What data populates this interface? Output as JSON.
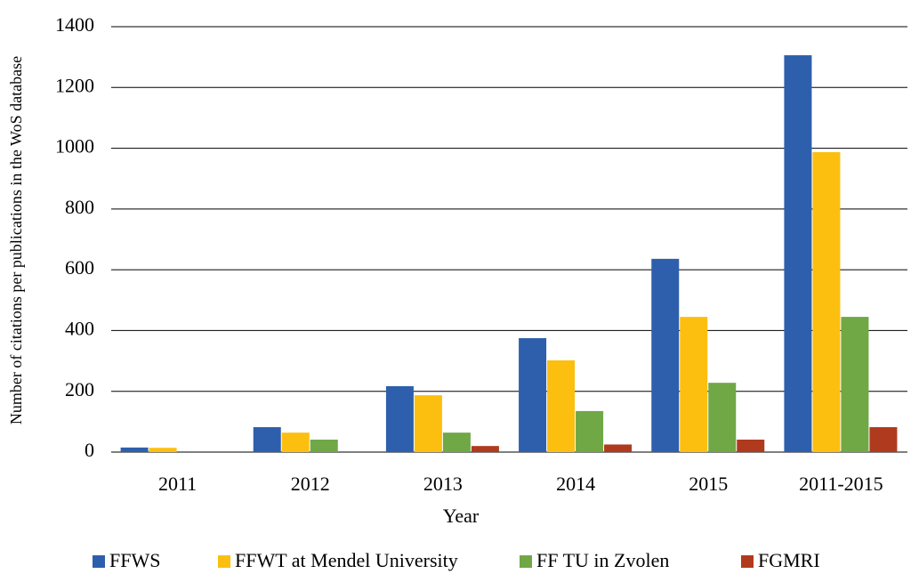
{
  "chart_data": {
    "type": "bar",
    "x_label": "Year",
    "y_label": "Number of citations per publications in the WoS database",
    "categories": [
      "2011",
      "2012",
      "2013",
      "2014",
      "2015",
      "2011-2015"
    ],
    "series": [
      {
        "name": "FFWS",
        "color": "#2e5fac",
        "values": [
          15,
          82,
          217,
          375,
          636,
          1306
        ]
      },
      {
        "name": "FFWT at Mendel University",
        "color": "#fdbf0f",
        "values": [
          14,
          64,
          187,
          302,
          445,
          987
        ]
      },
      {
        "name": "FF TU in Zvolen",
        "color": "#6fa845",
        "values": [
          0,
          41,
          64,
          135,
          228,
          445
        ]
      },
      {
        "name": "FGMRI",
        "color": "#b03a1e",
        "values": [
          0,
          0,
          20,
          25,
          41,
          82
        ]
      }
    ],
    "ylim": [
      0,
      1400
    ],
    "yticks": [
      0,
      200,
      400,
      600,
      800,
      1000,
      1200,
      1400
    ],
    "grid": true,
    "legend": "bottom"
  }
}
